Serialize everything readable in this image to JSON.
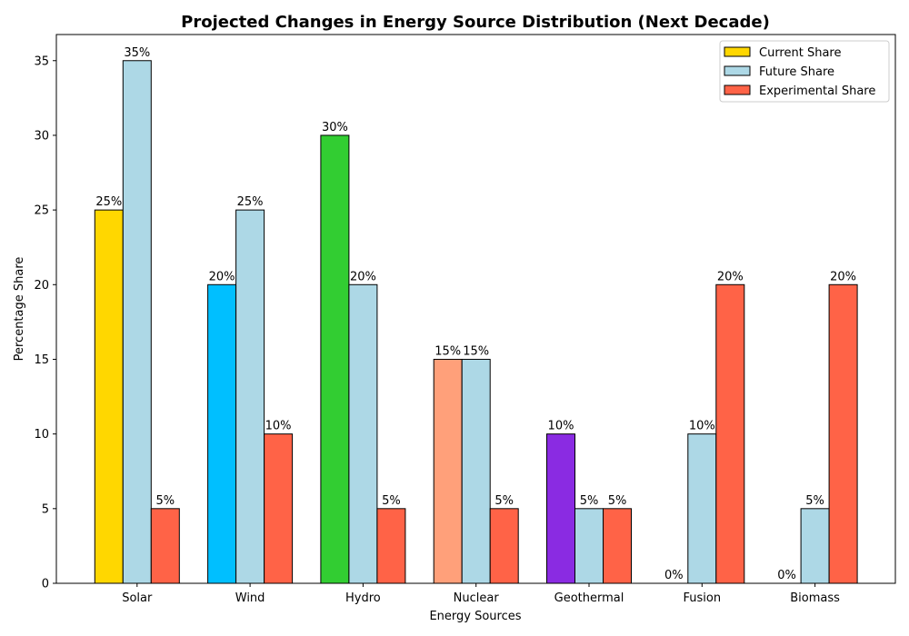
{
  "chart_data": {
    "type": "bar",
    "title": "Projected Changes in Energy Source Distribution (Next Decade)",
    "xlabel": "Energy Sources",
    "ylabel": "Percentage Share",
    "categories": [
      "Solar",
      "Wind",
      "Hydro",
      "Nuclear",
      "Geothermal",
      "Fusion",
      "Biomass"
    ],
    "ylim": [
      0,
      36.75
    ],
    "yticks": [
      0,
      5,
      10,
      15,
      20,
      25,
      30,
      35
    ],
    "grid": false,
    "legend_position": "top-right",
    "series": [
      {
        "name": "Current Share",
        "values": [
          25,
          20,
          30,
          15,
          10,
          0,
          0
        ],
        "labels": [
          "25%",
          "20%",
          "30%",
          "15%",
          "10%",
          "0%",
          "0%"
        ],
        "colors": [
          "#FFD700",
          "#00BFFF",
          "#32CD32",
          "#FFA07A",
          "#8A2BE2",
          "#FFD700",
          "#FFD700"
        ],
        "legend_color": "#FFD700"
      },
      {
        "name": "Future Share",
        "values": [
          35,
          25,
          20,
          15,
          5,
          10,
          5
        ],
        "labels": [
          "35%",
          "25%",
          "20%",
          "15%",
          "5%",
          "10%",
          "5%"
        ],
        "colors": [
          "#ADD8E6",
          "#ADD8E6",
          "#ADD8E6",
          "#ADD8E6",
          "#ADD8E6",
          "#ADD8E6",
          "#ADD8E6"
        ],
        "legend_color": "#ADD8E6"
      },
      {
        "name": "Experimental Share",
        "values": [
          5,
          10,
          5,
          5,
          5,
          20,
          20
        ],
        "labels": [
          "5%",
          "10%",
          "5%",
          "5%",
          "5%",
          "20%",
          "20%"
        ],
        "colors": [
          "#FF6347",
          "#FF6347",
          "#FF6347",
          "#FF6347",
          "#FF6347",
          "#FF6347",
          "#FF6347"
        ],
        "legend_color": "#FF6347"
      }
    ]
  }
}
